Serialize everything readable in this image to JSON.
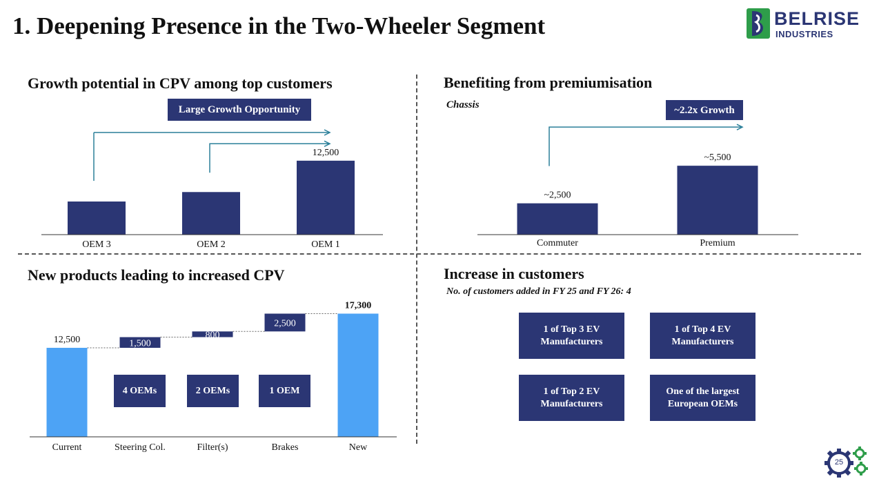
{
  "slide": {
    "title": "1. Deepening Presence in the Two-Wheeler Segment",
    "page_number": "25"
  },
  "logo": {
    "name": "BELRISE",
    "subtitle": "INDUSTRIES"
  },
  "colors": {
    "navy": "#2b3674",
    "light_blue": "#4da3f5",
    "teal_arrow": "#2a7f99",
    "logo_green": "#2e9d4a"
  },
  "chart_data": [
    {
      "type": "bar",
      "title": "Growth potential in CPV among top customers",
      "categories": [
        "OEM 3",
        "OEM 2",
        "OEM 1"
      ],
      "values": [
        5600,
        7200,
        12500
      ],
      "data_labels": [
        "",
        "",
        "12,500"
      ],
      "ylim": [
        0,
        14000
      ],
      "annotation": "Large Growth Opportunity"
    },
    {
      "type": "bar",
      "title": "Benefiting from premiumisation",
      "subtitle": "Chassis",
      "categories": [
        "Commuter",
        "Premium"
      ],
      "values": [
        2500,
        5500
      ],
      "data_labels": [
        "~2,500",
        "~5,500"
      ],
      "ylim": [
        0,
        6500
      ],
      "annotation": "~2.2x Growth"
    },
    {
      "type": "bar",
      "subtype": "waterfall",
      "title": "New products leading to increased CPV",
      "categories": [
        "Current",
        "Steering Col.",
        "Filter(s)",
        "Brakes",
        "New"
      ],
      "values": [
        12500,
        1500,
        800,
        2500,
        17300
      ],
      "data_labels": [
        "12,500",
        "1,500",
        "800",
        "2,500",
        "17,300"
      ],
      "oem_labels": [
        "4 OEMs",
        "2 OEMs",
        "1 OEM"
      ],
      "ylim": [
        0,
        18800
      ]
    }
  ],
  "customers": {
    "title": "Increase in customers",
    "subtitle": "No. of customers added in FY 25 and FY 26: 4",
    "boxes": [
      "1 of Top 3 EV Manufacturers",
      "1 of Top 4 EV Manufacturers",
      "1 of Top 2 EV Manufacturers",
      "One of the largest European OEMs"
    ]
  }
}
